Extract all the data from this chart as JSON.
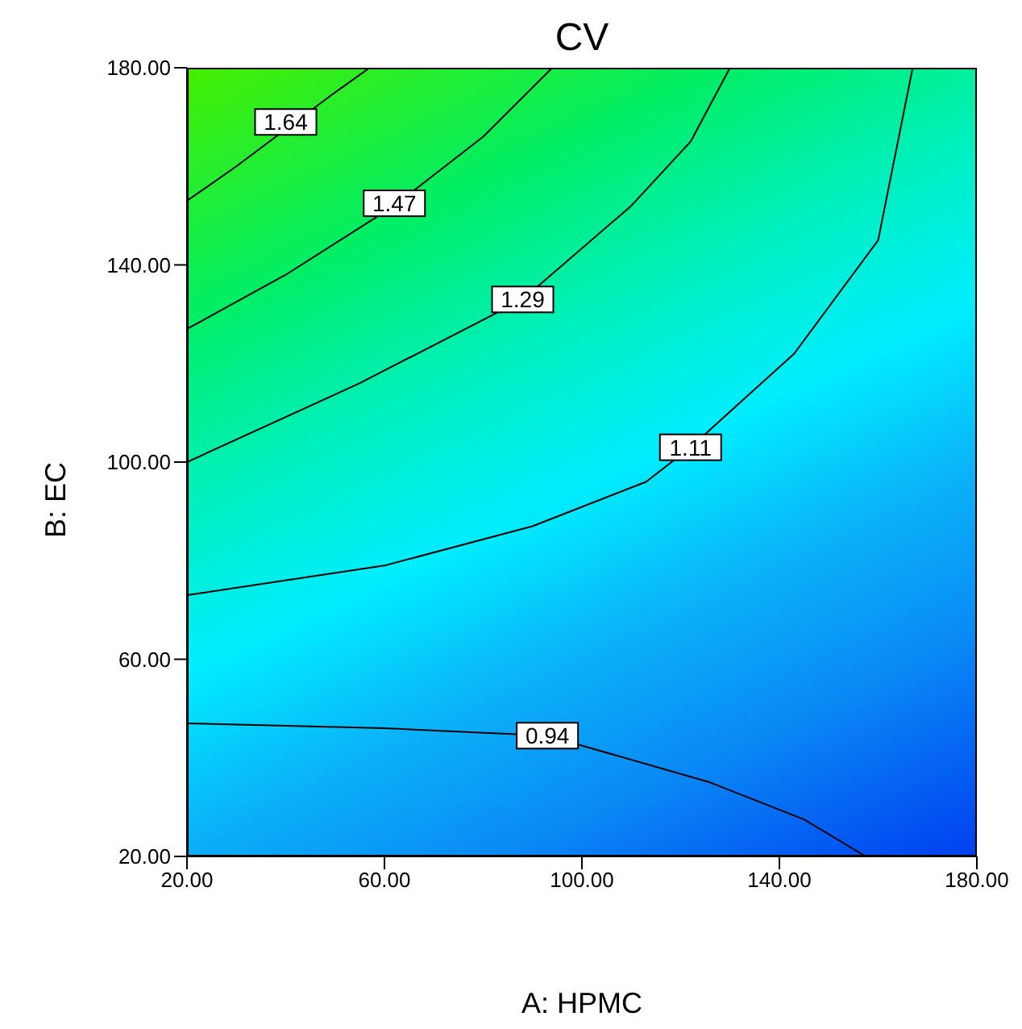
{
  "chart_data": {
    "type": "line",
    "title": "CV",
    "xlabel": "A: HPMC",
    "ylabel": "B: EC",
    "xlim": [
      20,
      180
    ],
    "ylim": [
      20,
      180
    ],
    "xticks": [
      {
        "value": 20,
        "label": "20.00"
      },
      {
        "value": 60,
        "label": "60.00"
      },
      {
        "value": 100,
        "label": "100.00"
      },
      {
        "value": 140,
        "label": "140.00"
      },
      {
        "value": 180,
        "label": "180.00"
      }
    ],
    "yticks": [
      {
        "value": 20,
        "label": "20.00"
      },
      {
        "value": 60,
        "label": "60.00"
      },
      {
        "value": 100,
        "label": "100.00"
      },
      {
        "value": 140,
        "label": "140.00"
      },
      {
        "value": 180,
        "label": "180.00"
      }
    ],
    "grid": false,
    "legend": false,
    "marker": "none",
    "line_style": "solid",
    "series": [
      {
        "color": "#000000",
        "x": [
          20,
          30,
          50,
          57
        ],
        "values": [
          153,
          160,
          175,
          180
        ]
      },
      {
        "color": "#000000",
        "x": [
          20,
          40,
          62,
          80,
          94
        ],
        "values": [
          127,
          138,
          152,
          166,
          180
        ]
      },
      {
        "color": "#000000",
        "x": [
          20,
          55,
          88,
          110,
          122,
          130
        ],
        "values": [
          100,
          116,
          133,
          152,
          165,
          180
        ]
      },
      {
        "color": "#000000",
        "x": [
          20,
          60,
          90,
          113,
          122,
          143,
          160,
          167
        ],
        "values": [
          73,
          79,
          87,
          96,
          103,
          122,
          145,
          180
        ]
      },
      {
        "color": "#000000",
        "x": [
          20,
          60,
          93,
          126,
          145,
          157.5
        ],
        "values": [
          47,
          46,
          44.5,
          35,
          27.5,
          20
        ]
      }
    ],
    "annotations": [
      {
        "text": "1.64",
        "x": 40,
        "y": 169
      },
      {
        "text": "1.47",
        "x": 62,
        "y": 152.5
      },
      {
        "text": "1.29",
        "x": 88,
        "y": 133
      },
      {
        "text": "1.11",
        "x": 122,
        "y": 103
      },
      {
        "text": "0.94",
        "x": 93,
        "y": 44.5
      }
    ]
  }
}
